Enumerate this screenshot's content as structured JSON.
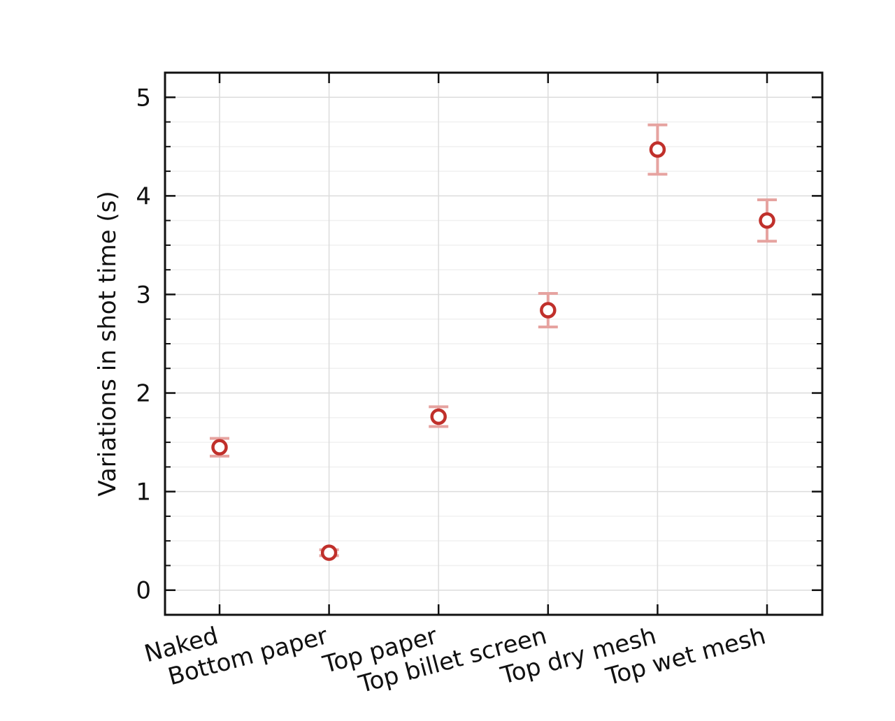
{
  "chart_data": {
    "type": "scatter",
    "title": "",
    "xlabel": "",
    "ylabel": "Variations in shot time (s)",
    "categories": [
      "Naked",
      "Bottom paper",
      "Top paper",
      "Top billet screen",
      "Top dry mesh",
      "Top wet mesh"
    ],
    "series": [
      {
        "values": [
          1.45,
          0.38,
          1.76,
          2.84,
          4.47,
          3.75
        ],
        "errors": [
          0.09,
          0.03,
          0.1,
          0.17,
          0.25,
          0.21
        ]
      }
    ],
    "ylim": [
      -0.25,
      5.25
    ],
    "yticks": [
      0,
      1,
      2,
      3,
      4,
      5
    ],
    "grid": true,
    "legend": "none",
    "colors": {
      "marker": "#c0302b",
      "errorbar": "#e6a3a0",
      "grid_major": "#dcdcdc",
      "grid_minor": "#f0f0f0",
      "axis": "#111111"
    }
  }
}
